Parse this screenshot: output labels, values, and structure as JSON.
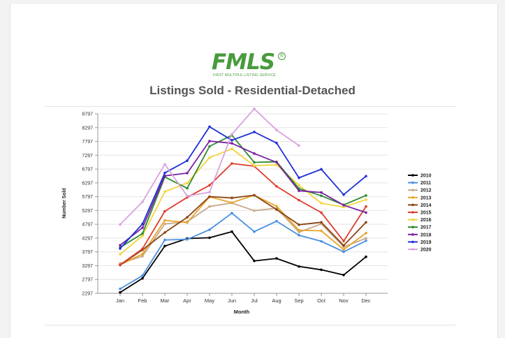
{
  "logo": {
    "word": "FMLS",
    "tagline": "FIRST MULTIPLE LISTING SERVICE"
  },
  "chart_data": {
    "type": "line",
    "title": "Listings Sold - Residential-Detached",
    "xlabel": "Month",
    "ylabel": "Number Sold",
    "ylim": [
      2297,
      8797
    ],
    "yticks": [
      2297,
      2797,
      3297,
      3797,
      4297,
      4797,
      5297,
      5797,
      6297,
      6797,
      7297,
      7797,
      8297,
      8797
    ],
    "categories": [
      "Jan",
      "Feb",
      "Mar",
      "Apr",
      "May",
      "Jun",
      "Jul",
      "Aug",
      "Sep",
      "Oct",
      "Nov",
      "Dec"
    ],
    "grid": true,
    "legend_position": "right",
    "series": [
      {
        "name": "2010",
        "color": "#000000",
        "values": [
          2330,
          2840,
          4010,
          4280,
          4310,
          4530,
          3470,
          3560,
          3270,
          3150,
          2960,
          3620
        ]
      },
      {
        "name": "2011",
        "color": "#4a90e2",
        "values": [
          2460,
          2940,
          4230,
          4250,
          4600,
          5200,
          4530,
          4910,
          4400,
          4180,
          3800,
          4200
        ]
      },
      {
        "name": "2012",
        "color": "#c8a98a",
        "values": [
          3380,
          3640,
          4810,
          4890,
          5440,
          5570,
          5290,
          5380,
          4510,
          4810,
          3980,
          4290
        ]
      },
      {
        "name": "2013",
        "color": "#e6a52b",
        "values": [
          3330,
          3720,
          4940,
          4860,
          5790,
          5580,
          5850,
          5450,
          4580,
          4560,
          3880,
          4480
        ]
      },
      {
        "name": "2014",
        "color": "#8b4513",
        "values": [
          3320,
          3870,
          4500,
          5050,
          5800,
          5750,
          5850,
          5330,
          4780,
          4870,
          4030,
          4870
        ]
      },
      {
        "name": "2015",
        "color": "#e03c2c",
        "values": [
          3330,
          3910,
          5270,
          5770,
          6210,
          7000,
          6900,
          6170,
          5670,
          5220,
          4190,
          5440
        ]
      },
      {
        "name": "2016",
        "color": "#f2d43c",
        "values": [
          3710,
          4380,
          5980,
          6290,
          7210,
          7530,
          6920,
          6950,
          6210,
          5560,
          5420,
          5690
        ]
      },
      {
        "name": "2017",
        "color": "#2e8b2e",
        "values": [
          3960,
          4460,
          6510,
          6100,
          7620,
          8020,
          7040,
          7060,
          6090,
          5830,
          5500,
          5840
        ]
      },
      {
        "name": "2018",
        "color": "#7b1fa2",
        "values": [
          4040,
          4670,
          6550,
          6650,
          7810,
          7730,
          7360,
          7040,
          6010,
          5950,
          5490,
          5220
        ]
      },
      {
        "name": "2019",
        "color": "#1f2fd6",
        "values": [
          3920,
          4810,
          6660,
          7100,
          8330,
          7840,
          8140,
          7740,
          6480,
          6790,
          5870,
          6540
        ]
      },
      {
        "name": "2020",
        "color": "#d9a3e0",
        "values": [
          4790,
          5610,
          6970,
          5820,
          5960,
          8060,
          8980,
          8210,
          7650,
          null,
          null,
          null
        ]
      }
    ]
  }
}
